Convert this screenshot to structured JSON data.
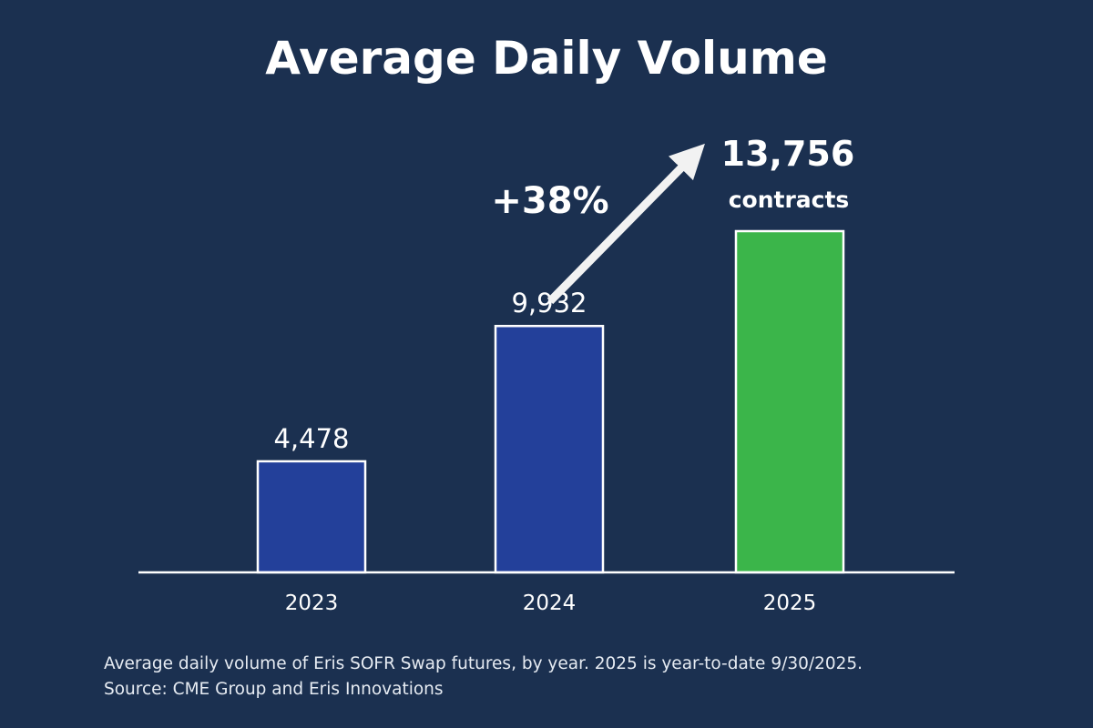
{
  "chart_data": {
    "type": "bar",
    "title": "Average Daily Volume",
    "categories": [
      "2023",
      "2024",
      "2025"
    ],
    "values": [
      4478,
      9932,
      13756
    ],
    "value_labels": [
      "4,478",
      "9,932",
      "13,756"
    ],
    "highlight_unit": "contracts",
    "annotation": "+38%",
    "ylim": [
      0,
      16000
    ],
    "xlabel": "",
    "ylabel": "",
    "grid": false,
    "colors": {
      "background": "#1b3050",
      "bar_default": "#23409a",
      "bar_highlight": "#3bb54a",
      "outline": "#ffffff",
      "text": "#ffffff"
    }
  },
  "caption": {
    "line1": "Average daily volume of Eris SOFR Swap futures, by year. 2025 is year-to-date 9/30/2025.",
    "line2": "Source: CME Group and Eris Innovations"
  }
}
